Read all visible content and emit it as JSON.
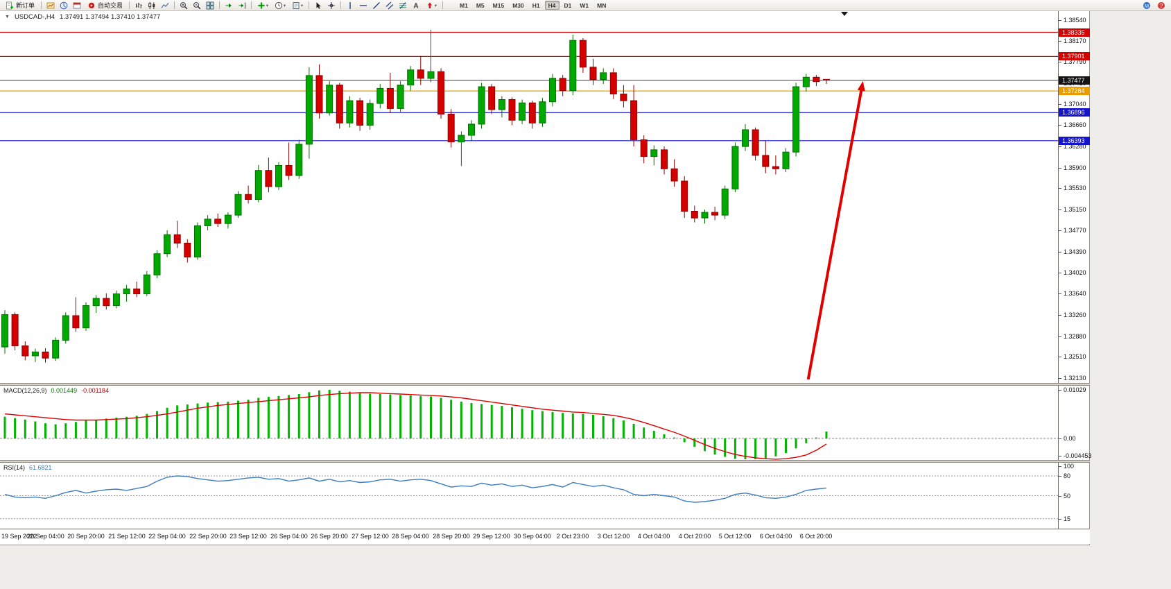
{
  "toolbar": {
    "left_items": [
      {
        "kind": "button",
        "name": "new-order",
        "icon": "new-order-icon",
        "label": "新订单"
      },
      {
        "kind": "sep"
      },
      {
        "kind": "icon",
        "name": "market-watch",
        "icon": "market-watch-icon"
      },
      {
        "kind": "icon",
        "name": "navigator",
        "icon": "navigator-icon"
      },
      {
        "kind": "icon",
        "name": "terminal",
        "icon": "terminal-icon"
      },
      {
        "kind": "button",
        "name": "auto-trading",
        "icon": "auto-trading-icon",
        "label": "自动交易"
      },
      {
        "kind": "sep"
      },
      {
        "kind": "icon",
        "name": "bar-chart-mode",
        "icon": "bar-chart-icon"
      },
      {
        "kind": "icon",
        "name": "candle-chart-mode",
        "icon": "candle-chart-icon"
      },
      {
        "kind": "icon",
        "name": "line-chart-mode",
        "icon": "line-chart-icon"
      },
      {
        "kind": "sep"
      },
      {
        "kind": "icon",
        "name": "zoom-in",
        "icon": "zoom-in-icon"
      },
      {
        "kind": "icon",
        "name": "zoom-out",
        "icon": "zoom-out-icon"
      },
      {
        "kind": "icon",
        "name": "tile-windows",
        "icon": "tile-windows-icon"
      },
      {
        "kind": "sep"
      },
      {
        "kind": "icon",
        "name": "auto-scroll",
        "icon": "auto-scroll-icon"
      },
      {
        "kind": "icon",
        "name": "chart-shift",
        "icon": "chart-shift-icon"
      },
      {
        "kind": "sep"
      },
      {
        "kind": "icon-drop",
        "name": "indicators",
        "icon": "indicators-icon"
      },
      {
        "kind": "icon-drop",
        "name": "periods",
        "icon": "periods-icon"
      },
      {
        "kind": "icon-drop",
        "name": "templates",
        "icon": "templates-icon"
      },
      {
        "kind": "sep"
      },
      {
        "kind": "icon",
        "name": "cursor-mode",
        "icon": "cursor-icon"
      },
      {
        "kind": "icon",
        "name": "crosshair-mode",
        "icon": "crosshair-icon"
      },
      {
        "kind": "sep"
      },
      {
        "kind": "icon",
        "name": "draw-vertical-line",
        "icon": "vertical-line-icon"
      },
      {
        "kind": "icon",
        "name": "draw-horizontal-line",
        "icon": "horizontal-line-icon"
      },
      {
        "kind": "icon",
        "name": "draw-trendline",
        "icon": "trendline-icon"
      },
      {
        "kind": "icon",
        "name": "draw-channel",
        "icon": "channel-icon"
      },
      {
        "kind": "icon",
        "name": "draw-fibonacci",
        "icon": "fibonacci-icon"
      },
      {
        "kind": "icon",
        "name": "draw-text",
        "icon": "text-label-icon"
      },
      {
        "kind": "icon-drop",
        "name": "draw-arrows",
        "icon": "arrows-icon"
      },
      {
        "kind": "sep"
      }
    ],
    "timeframes": [
      "M1",
      "M5",
      "M15",
      "M30",
      "H1",
      "H4",
      "D1",
      "W1",
      "MN"
    ],
    "active_timeframe": "H4",
    "right_icons": [
      {
        "name": "community",
        "icon": "community-icon"
      },
      {
        "name": "help",
        "icon": "help-icon"
      }
    ]
  },
  "chart_window": {
    "symbol_period": "USDCAD-,H4",
    "ohlc": "1.37491 1.37494 1.37410 1.37477"
  },
  "price_scale": {
    "ticks": [
      "1.38540",
      "1.38170",
      "1.37790",
      "1.37410",
      "1.37040",
      "1.36660",
      "1.36280",
      "1.35900",
      "1.35530",
      "1.35150",
      "1.34770",
      "1.34390",
      "1.34020",
      "1.33640",
      "1.33260",
      "1.32880",
      "1.32510",
      "1.32130"
    ],
    "labels": [
      {
        "text": "1.38335",
        "price": 1.38335,
        "bg": "#d40000"
      },
      {
        "text": "1.37901",
        "price": 1.37901,
        "bg": "#d40000"
      },
      {
        "text": "1.37477",
        "price": 1.37477,
        "bg": "#141414"
      },
      {
        "text": "1.37284",
        "price": 1.37284,
        "bg": "#e89c00"
      },
      {
        "text": "1.36896",
        "price": 1.36896,
        "bg": "#1414cc"
      },
      {
        "text": "1.36393",
        "price": 1.36393,
        "bg": "#1414cc"
      }
    ]
  },
  "chart_data": {
    "type": "candlestick",
    "symbol": "USDCAD",
    "period": "H4",
    "price_range": [
      1.32055,
      1.38714
    ],
    "colors": {
      "bull": "#00a800",
      "bear": "#d40000",
      "bull_border": "#006e00",
      "bear_border": "#8f0000",
      "bid_line": "#3c3c3c"
    },
    "hlines": [
      {
        "price": 1.38335,
        "color": "#d40000"
      },
      {
        "price": 1.37901,
        "color": "#d40000"
      },
      {
        "price": 1.37284,
        "color": "#e89c00"
      },
      {
        "price": 1.36896,
        "color": "#1414cc"
      },
      {
        "price": 1.36393,
        "color": "#1414cc"
      }
    ],
    "bid_price": 1.37477,
    "arrow": {
      "start": {
        "candle": 79.2,
        "price": 1.3212
      },
      "end": {
        "candle": 84.6,
        "price": 1.3746
      },
      "color": "#e00000"
    },
    "candles": [
      [
        1.327,
        1.3336,
        1.3258,
        1.3328
      ],
      [
        1.3328,
        1.3332,
        1.3264,
        1.3272
      ],
      [
        1.3272,
        1.328,
        1.3246,
        1.3254
      ],
      [
        1.3254,
        1.3267,
        1.3243,
        1.3261
      ],
      [
        1.3261,
        1.3268,
        1.3242,
        1.325
      ],
      [
        1.325,
        1.3287,
        1.3245,
        1.3282
      ],
      [
        1.3282,
        1.3332,
        1.3276,
        1.3326
      ],
      [
        1.3326,
        1.3359,
        1.3297,
        1.3304
      ],
      [
        1.3304,
        1.335,
        1.3299,
        1.3344
      ],
      [
        1.3344,
        1.3363,
        1.3331,
        1.3357
      ],
      [
        1.3357,
        1.3366,
        1.3337,
        1.3344
      ],
      [
        1.3344,
        1.3371,
        1.3339,
        1.3365
      ],
      [
        1.3365,
        1.3381,
        1.3351,
        1.3374
      ],
      [
        1.3374,
        1.3387,
        1.3359,
        1.3365
      ],
      [
        1.3365,
        1.3406,
        1.3361,
        1.3399
      ],
      [
        1.3399,
        1.3443,
        1.3393,
        1.3437
      ],
      [
        1.3437,
        1.3479,
        1.3431,
        1.3471
      ],
      [
        1.3471,
        1.3496,
        1.3447,
        1.3456
      ],
      [
        1.3456,
        1.3463,
        1.3421,
        1.3431
      ],
      [
        1.3431,
        1.3493,
        1.3426,
        1.3487
      ],
      [
        1.3487,
        1.3506,
        1.3479,
        1.3499
      ],
      [
        1.3499,
        1.3509,
        1.3485,
        1.3491
      ],
      [
        1.3491,
        1.3511,
        1.3482,
        1.3506
      ],
      [
        1.3506,
        1.3549,
        1.3501,
        1.3543
      ],
      [
        1.3543,
        1.3559,
        1.3527,
        1.3534
      ],
      [
        1.3534,
        1.3596,
        1.3529,
        1.3586
      ],
      [
        1.3586,
        1.3609,
        1.3547,
        1.3557
      ],
      [
        1.3557,
        1.3601,
        1.3551,
        1.3595
      ],
      [
        1.3595,
        1.3636,
        1.3569,
        1.3577
      ],
      [
        1.3577,
        1.3641,
        1.3571,
        1.3633
      ],
      [
        1.3633,
        1.3771,
        1.3607,
        1.3756
      ],
      [
        1.3756,
        1.3776,
        1.3679,
        1.3689
      ],
      [
        1.3689,
        1.3746,
        1.3684,
        1.3739
      ],
      [
        1.3739,
        1.3743,
        1.3661,
        1.3671
      ],
      [
        1.3671,
        1.3719,
        1.3663,
        1.3711
      ],
      [
        1.3711,
        1.3716,
        1.3657,
        1.3667
      ],
      [
        1.3667,
        1.3713,
        1.3659,
        1.3706
      ],
      [
        1.3706,
        1.3741,
        1.3697,
        1.3733
      ],
      [
        1.3733,
        1.3761,
        1.3689,
        1.3697
      ],
      [
        1.3697,
        1.3746,
        1.3691,
        1.3739
      ],
      [
        1.3739,
        1.3773,
        1.3729,
        1.3766
      ],
      [
        1.3766,
        1.3791,
        1.3739,
        1.3751
      ],
      [
        1.3751,
        1.3838,
        1.3744,
        1.3763
      ],
      [
        1.3763,
        1.3769,
        1.3679,
        1.3687
      ],
      [
        1.3687,
        1.3696,
        1.3627,
        1.3637
      ],
      [
        1.3637,
        1.3656,
        1.3594,
        1.3649
      ],
      [
        1.3649,
        1.3676,
        1.3639,
        1.3669
      ],
      [
        1.3669,
        1.3743,
        1.3661,
        1.3736
      ],
      [
        1.3736,
        1.3741,
        1.3687,
        1.3695
      ],
      [
        1.3695,
        1.3719,
        1.3681,
        1.3713
      ],
      [
        1.3713,
        1.3717,
        1.3667,
        1.3676
      ],
      [
        1.3676,
        1.3713,
        1.3669,
        1.3707
      ],
      [
        1.3707,
        1.3711,
        1.3661,
        1.3671
      ],
      [
        1.3671,
        1.3716,
        1.3664,
        1.3709
      ],
      [
        1.3709,
        1.3759,
        1.3701,
        1.3751
      ],
      [
        1.3751,
        1.3757,
        1.3719,
        1.3729
      ],
      [
        1.3729,
        1.3829,
        1.3721,
        1.3819
      ],
      [
        1.3819,
        1.3823,
        1.3761,
        1.3771
      ],
      [
        1.3771,
        1.3786,
        1.3739,
        1.3749
      ],
      [
        1.3749,
        1.3769,
        1.3741,
        1.3761
      ],
      [
        1.3761,
        1.3769,
        1.3714,
        1.3723
      ],
      [
        1.3723,
        1.3739,
        1.3699,
        1.3711
      ],
      [
        1.3711,
        1.3739,
        1.3629,
        1.3641
      ],
      [
        1.3641,
        1.3649,
        1.3599,
        1.3611
      ],
      [
        1.3611,
        1.3631,
        1.3595,
        1.3623
      ],
      [
        1.3623,
        1.3629,
        1.3579,
        1.3589
      ],
      [
        1.3589,
        1.3606,
        1.3557,
        1.3567
      ],
      [
        1.3567,
        1.3576,
        1.3501,
        1.3513
      ],
      [
        1.3513,
        1.3523,
        1.3493,
        1.3501
      ],
      [
        1.3501,
        1.3516,
        1.3491,
        1.3511
      ],
      [
        1.3511,
        1.3521,
        1.3497,
        1.3506
      ],
      [
        1.3506,
        1.3559,
        1.3499,
        1.3553
      ],
      [
        1.3553,
        1.3636,
        1.3547,
        1.3629
      ],
      [
        1.3629,
        1.3669,
        1.3621,
        1.3659
      ],
      [
        1.3659,
        1.3663,
        1.3604,
        1.3613
      ],
      [
        1.3613,
        1.3639,
        1.3581,
        1.3593
      ],
      [
        1.3593,
        1.3613,
        1.3579,
        1.3589
      ],
      [
        1.3589,
        1.3626,
        1.3583,
        1.3619
      ],
      [
        1.3619,
        1.3743,
        1.3611,
        1.3736
      ],
      [
        1.3736,
        1.3759,
        1.3727,
        1.3753
      ],
      [
        1.3753,
        1.3757,
        1.3737,
        1.3745
      ],
      [
        1.37491,
        1.37494,
        1.3741,
        1.37477
      ]
    ],
    "macd": {
      "label": "MACD(12,26,9)",
      "value": "0.001449",
      "signal_value": "-0.001184",
      "range": [
        -0.00456,
        0.01117
      ],
      "ticks": [
        {
          "text": "0.01029",
          "value": 0.01029
        },
        {
          "text": "0.00",
          "value": 0
        },
        {
          "text": "-0.004453",
          "value": -0.004453
        }
      ],
      "colors": {
        "histogram": "#00b400",
        "signal": "#e00000",
        "zero_line": "#8a8a8a"
      },
      "histogram": [
        0.0046,
        0.0043,
        0.004,
        0.0036,
        0.0032,
        0.003,
        0.0032,
        0.0035,
        0.0038,
        0.004,
        0.0042,
        0.0044,
        0.0046,
        0.0048,
        0.0052,
        0.0058,
        0.0065,
        0.007,
        0.0072,
        0.0074,
        0.0076,
        0.0077,
        0.0078,
        0.008,
        0.0082,
        0.0086,
        0.0088,
        0.009,
        0.0092,
        0.0094,
        0.0098,
        0.0102,
        0.0103,
        0.0101,
        0.0099,
        0.0097,
        0.0095,
        0.0094,
        0.0093,
        0.0092,
        0.0091,
        0.009,
        0.0089,
        0.0086,
        0.0082,
        0.0078,
        0.0075,
        0.0073,
        0.0071,
        0.0069,
        0.0066,
        0.0063,
        0.006,
        0.0058,
        0.0056,
        0.0054,
        0.0053,
        0.0052,
        0.005,
        0.0047,
        0.0043,
        0.0038,
        0.0031,
        0.0023,
        0.0016,
        0.0009,
        0.0002,
        -0.0008,
        -0.0018,
        -0.0027,
        -0.0034,
        -0.0039,
        -0.0043,
        -0.0044,
        -0.0044,
        -0.0042,
        -0.0038,
        -0.0031,
        -0.0021,
        -0.001,
        0.0002,
        0.001449
      ],
      "signal": [
        0.0052,
        0.005,
        0.0048,
        0.0046,
        0.0044,
        0.0042,
        0.004,
        0.0039,
        0.0039,
        0.0039,
        0.004,
        0.0041,
        0.0042,
        0.0044,
        0.0046,
        0.0049,
        0.0052,
        0.0056,
        0.006,
        0.0064,
        0.0067,
        0.007,
        0.0072,
        0.0074,
        0.0076,
        0.0078,
        0.008,
        0.0082,
        0.0084,
        0.0086,
        0.0088,
        0.0091,
        0.0093,
        0.0095,
        0.0096,
        0.0097,
        0.0097,
        0.0096,
        0.0095,
        0.0094,
        0.0093,
        0.0092,
        0.0091,
        0.009,
        0.0088,
        0.0086,
        0.0083,
        0.008,
        0.0077,
        0.0074,
        0.0071,
        0.0068,
        0.0065,
        0.0062,
        0.006,
        0.0058,
        0.0056,
        0.0055,
        0.0053,
        0.0051,
        0.0049,
        0.0045,
        0.004,
        0.0034,
        0.0027,
        0.002,
        0.0013,
        0.0005,
        -0.0004,
        -0.0013,
        -0.0021,
        -0.0028,
        -0.0034,
        -0.0038,
        -0.0041,
        -0.0043,
        -0.0044,
        -0.0043,
        -0.004,
        -0.0035,
        -0.0025,
        -0.001184
      ]
    },
    "rsi": {
      "label": "RSI(14)",
      "value": "61.6821",
      "range": [
        0,
        100
      ],
      "ticks": [
        {
          "text": "100",
          "value": 100
        },
        {
          "text": "80",
          "value": 80
        },
        {
          "text": "50",
          "value": 50
        },
        {
          "text": "15",
          "value": 15
        }
      ],
      "levels": [
        80,
        50,
        15
      ],
      "color": "#3c7cc0",
      "level_line_color": "#999999",
      "values": [
        52,
        48,
        47,
        48,
        46,
        50,
        55,
        58,
        54,
        57,
        59,
        60,
        58,
        61,
        64,
        72,
        78,
        80,
        79,
        76,
        74,
        72,
        73,
        75,
        77,
        78,
        75,
        76,
        72,
        74,
        77,
        72,
        75,
        71,
        73,
        70,
        71,
        74,
        75,
        72,
        74,
        75,
        73,
        68,
        63,
        65,
        64,
        69,
        66,
        68,
        64,
        66,
        62,
        64,
        67,
        63,
        70,
        67,
        64,
        66,
        62,
        59,
        52,
        50,
        52,
        50,
        48,
        42,
        40,
        41,
        43,
        46,
        52,
        54,
        51,
        47,
        46,
        48,
        52,
        58,
        60,
        61.68
      ]
    },
    "time_labels": [
      "19 Sep 2022",
      "20 Sep 04:00",
      "20 Sep 20:00",
      "21 Sep 12:00",
      "22 Sep 04:00",
      "22 Sep 20:00",
      "23 Sep 12:00",
      "26 Sep 04:00",
      "26 Sep 20:00",
      "27 Sep 12:00",
      "28 Sep 04:00",
      "28 Sep 20:00",
      "29 Sep 12:00",
      "30 Sep 04:00",
      "2 Oct 23:00",
      "3 Oct 12:00",
      "4 Oct 04:00",
      "4 Oct 20:00",
      "5 Oct 12:00",
      "6 Oct 04:00",
      "6 Oct 20:00"
    ],
    "label_every_candles": 4
  }
}
